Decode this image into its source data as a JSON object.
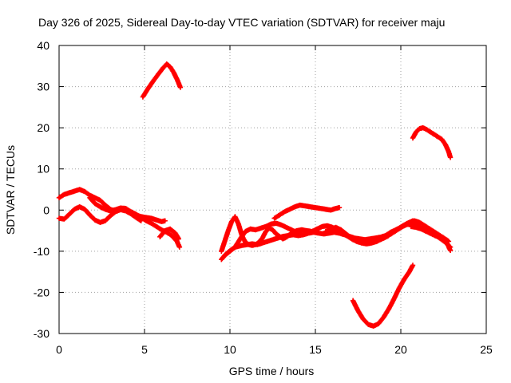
{
  "chart_data": {
    "type": "scatter",
    "title": "Day 326 of 2025, Sidereal Day-to-day VTEC variation (SDTVAR) for receiver maju",
    "xlabel": "GPS time / hours",
    "ylabel": "SDTVAR / TECUs",
    "xlim": [
      0,
      25
    ],
    "ylim": [
      -30,
      40
    ],
    "xticks": [
      0,
      5,
      10,
      15,
      20,
      25
    ],
    "yticks": [
      -30,
      -20,
      -10,
      0,
      10,
      20,
      30,
      40
    ],
    "xtick_labels": [
      "0",
      "5",
      "10",
      "15",
      "20",
      "25"
    ],
    "ytick_labels": [
      "-30",
      "-20",
      "-10",
      "0",
      "10",
      "20",
      "30",
      "40"
    ],
    "grid": true,
    "marker": "+",
    "color": "#ff0000",
    "series": [
      {
        "name": "track-1",
        "x": [
          0.0,
          0.3,
          0.6,
          0.9,
          1.2,
          1.5,
          1.8,
          2.1,
          2.4,
          2.7,
          3.0,
          3.3,
          3.6,
          3.9,
          4.2,
          4.5,
          4.8,
          5.1,
          5.4,
          5.7,
          6.0,
          6.2
        ],
        "y": [
          3.0,
          3.8,
          4.2,
          4.6,
          5.0,
          4.5,
          3.6,
          3.0,
          2.4,
          1.2,
          0.2,
          -0.3,
          0.4,
          0.2,
          -0.6,
          -1.2,
          -1.6,
          -1.8,
          -2.0,
          -2.4,
          -2.8,
          -2.6
        ]
      },
      {
        "name": "track-2",
        "x": [
          0.0,
          0.3,
          0.6,
          0.9,
          1.2,
          1.5,
          1.8,
          2.1,
          2.4,
          2.7,
          3.0,
          3.3,
          3.6,
          3.9,
          4.2,
          4.5,
          4.8
        ],
        "y": [
          -2.0,
          -2.2,
          -1.0,
          0.2,
          0.8,
          0.2,
          -1.2,
          -2.4,
          -3.0,
          -2.6,
          -1.4,
          -0.4,
          0.1,
          -0.2,
          -0.9,
          -1.8,
          -2.6
        ]
      },
      {
        "name": "track-3",
        "x": [
          1.8,
          2.1,
          2.4,
          2.7,
          3.0,
          3.3,
          3.6,
          3.9,
          4.2,
          4.5,
          4.8,
          5.1,
          5.4,
          5.7,
          6.0,
          6.3,
          6.6,
          6.9,
          7.05
        ],
        "y": [
          3.0,
          1.6,
          0.8,
          0.2,
          -0.2,
          0.1,
          0.5,
          0.4,
          -0.4,
          -1.0,
          -1.8,
          -2.6,
          -3.2,
          -4.0,
          -4.8,
          -5.4,
          -6.2,
          -7.6,
          -9.0
        ]
      },
      {
        "name": "track-4",
        "x": [
          4.9,
          5.2,
          5.5,
          5.8,
          6.1,
          6.3,
          6.5,
          6.7,
          6.9,
          7.1
        ],
        "y": [
          27.5,
          29.5,
          31.3,
          33.0,
          34.6,
          35.5,
          34.8,
          33.5,
          31.8,
          29.8
        ]
      },
      {
        "name": "track-5",
        "x": [
          5.9,
          6.2,
          6.5,
          6.8,
          7.0
        ],
        "y": [
          -6.5,
          -5.0,
          -4.6,
          -5.6,
          -7.0
        ]
      },
      {
        "name": "track-6",
        "x": [
          9.5,
          9.7,
          9.9,
          10.1,
          10.3,
          10.5,
          10.7,
          11.0,
          11.3,
          11.6,
          11.9,
          12.2,
          12.5,
          12.8,
          13.1,
          13.4,
          13.7,
          14.0,
          14.3,
          14.6,
          14.9,
          15.2,
          15.5,
          15.8,
          16.1,
          16.4,
          16.7,
          17.0,
          17.3,
          17.6,
          17.9,
          18.2,
          18.5,
          18.8,
          19.1,
          19.4,
          19.7,
          20.0,
          20.3,
          20.6,
          20.9,
          21.2,
          21.5,
          21.8,
          22.1,
          22.4,
          22.7,
          22.9
        ],
        "y": [
          -12.0,
          -11.0,
          -10.2,
          -9.6,
          -9.0,
          -8.8,
          -8.6,
          -8.4,
          -8.2,
          -8.4,
          -8.0,
          -7.6,
          -7.2,
          -6.8,
          -6.4,
          -6.2,
          -6.0,
          -6.2,
          -6.0,
          -5.6,
          -5.4,
          -5.6,
          -5.8,
          -5.6,
          -5.4,
          -5.6,
          -6.0,
          -6.4,
          -6.8,
          -7.0,
          -7.2,
          -7.0,
          -6.8,
          -6.6,
          -6.2,
          -5.4,
          -4.8,
          -4.2,
          -3.6,
          -3.2,
          -3.6,
          -4.4,
          -5.0,
          -5.6,
          -6.2,
          -7.0,
          -8.0,
          -9.8
        ]
      },
      {
        "name": "track-7",
        "x": [
          9.5,
          9.7,
          9.9,
          10.1,
          10.3,
          10.5,
          10.7,
          10.9,
          11.1,
          11.3,
          11.5,
          11.7,
          11.9,
          12.1,
          12.3,
          12.5,
          12.7,
          12.9,
          13.1,
          13.3,
          13.6,
          13.9,
          14.2,
          14.5,
          14.8,
          15.1,
          15.4,
          15.7,
          16.0,
          16.3,
          16.6,
          16.9,
          17.2,
          17.5,
          17.8,
          18.1,
          18.4,
          18.7,
          19.0,
          19.3,
          19.6,
          19.9,
          20.2,
          20.5,
          20.8,
          21.1,
          21.4,
          21.7,
          22.0,
          22.3,
          22.6,
          22.8
        ],
        "y": [
          -10.0,
          -7.5,
          -5.0,
          -2.8,
          -1.6,
          -3.4,
          -6.2,
          -7.8,
          -8.4,
          -8.6,
          -8.4,
          -7.8,
          -6.8,
          -5.2,
          -4.4,
          -4.8,
          -5.8,
          -6.4,
          -7.0,
          -6.6,
          -5.6,
          -5.0,
          -4.8,
          -5.0,
          -5.2,
          -4.6,
          -4.0,
          -3.8,
          -4.2,
          -4.8,
          -5.6,
          -6.4,
          -7.2,
          -7.6,
          -7.8,
          -7.6,
          -7.4,
          -7.2,
          -6.8,
          -6.0,
          -5.2,
          -4.4,
          -3.6,
          -3.0,
          -2.6,
          -3.0,
          -3.8,
          -4.6,
          -5.4,
          -6.2,
          -7.0,
          -7.6
        ]
      },
      {
        "name": "track-8",
        "x": [
          9.7,
          10.0,
          10.3,
          10.6,
          10.9,
          11.2,
          11.5,
          11.8,
          12.1,
          12.4,
          12.7,
          13.0,
          13.3,
          13.6,
          13.9,
          14.2
        ],
        "y": [
          -11.0,
          -10.0,
          -9.0,
          -7.0,
          -5.2,
          -4.6,
          -4.8,
          -4.4,
          -4.0,
          -3.4,
          -3.2,
          -3.6,
          -4.2,
          -4.8,
          -5.4,
          -5.8
        ]
      },
      {
        "name": "track-9",
        "x": [
          12.6,
          12.9,
          13.2,
          13.5,
          13.8,
          14.1,
          14.4,
          14.7,
          15.0,
          15.3,
          15.6,
          15.9,
          16.2,
          16.4
        ],
        "y": [
          -2.0,
          -1.2,
          -0.4,
          0.2,
          0.8,
          1.2,
          1.0,
          0.8,
          0.6,
          0.4,
          0.2,
          0.0,
          0.4,
          0.6
        ]
      },
      {
        "name": "track-10",
        "x": [
          15.6,
          15.9,
          16.2,
          16.5,
          16.8,
          17.1,
          17.4,
          17.7,
          18.0,
          18.3,
          18.6,
          18.9,
          19.2,
          19.5,
          19.8,
          20.1,
          20.4,
          20.7
        ],
        "y": [
          -5.2,
          -4.6,
          -4.2,
          -4.8,
          -5.8,
          -6.8,
          -7.6,
          -8.0,
          -8.2,
          -8.0,
          -7.6,
          -7.0,
          -6.4,
          -5.6,
          -4.8,
          -4.0,
          -3.2,
          -2.6
        ]
      },
      {
        "name": "track-11",
        "x": [
          20.6,
          20.9,
          21.2,
          21.5,
          21.8,
          22.0,
          22.2,
          22.4,
          22.6,
          22.9
        ],
        "y": [
          -4.0,
          -4.2,
          -4.6,
          -5.2,
          -5.8,
          -6.2,
          -6.6,
          -7.2,
          -7.8,
          -9.0
        ]
      },
      {
        "name": "track-12",
        "x": [
          17.2,
          17.5,
          17.8,
          18.1,
          18.4,
          18.7,
          19.0,
          19.3,
          19.6,
          19.9,
          20.2,
          20.5,
          20.7
        ],
        "y": [
          -22.0,
          -24.5,
          -26.5,
          -27.8,
          -28.2,
          -27.6,
          -26.0,
          -24.0,
          -21.6,
          -19.0,
          -16.8,
          -15.0,
          -13.4
        ]
      },
      {
        "name": "track-13",
        "x": [
          20.7,
          20.9,
          21.1,
          21.3,
          21.5,
          21.8,
          22.1,
          22.4,
          22.6,
          22.8,
          22.9
        ],
        "y": [
          17.5,
          19.0,
          19.8,
          20.0,
          19.6,
          18.8,
          18.0,
          17.2,
          16.0,
          14.2,
          12.8
        ]
      }
    ]
  }
}
